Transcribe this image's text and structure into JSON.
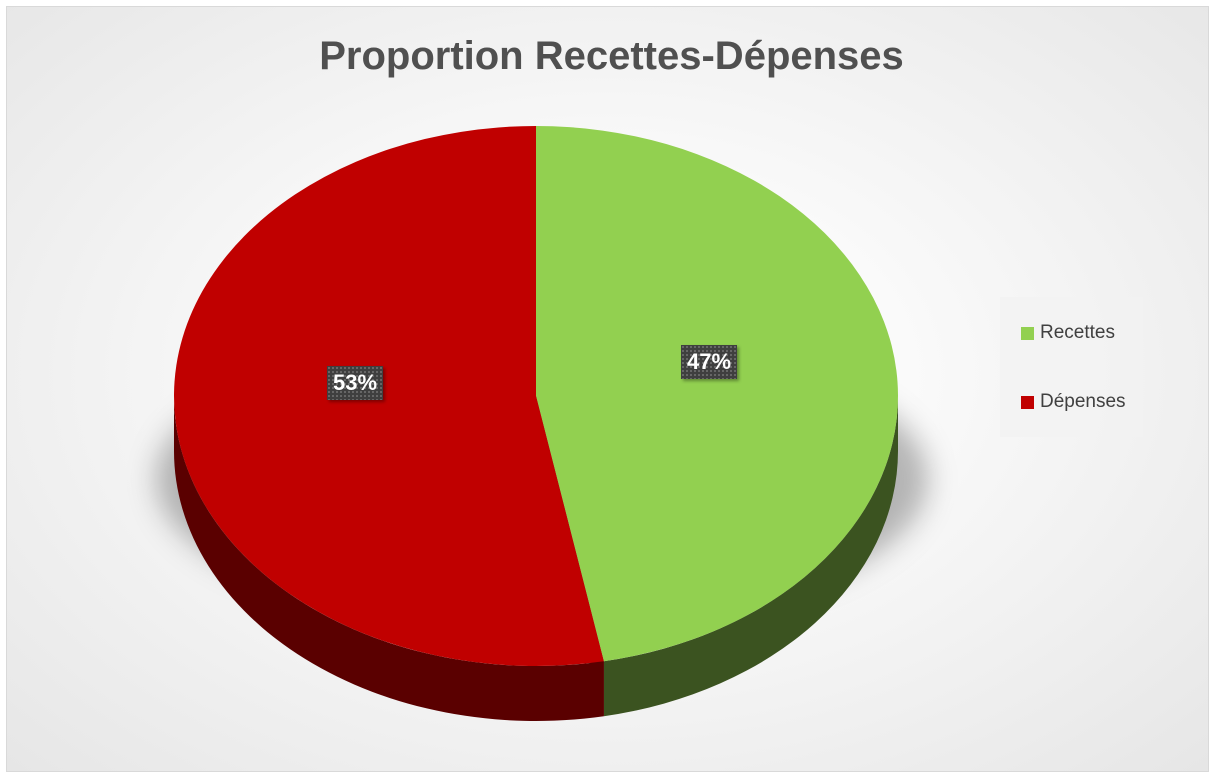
{
  "chart_data": {
    "type": "pie",
    "title": "Proportion Recettes-Dépenses",
    "slices": [
      {
        "name": "Recettes",
        "value": 47,
        "label": "47%",
        "color": "#92d050",
        "side_color": "#3b5320"
      },
      {
        "name": "Dépenses",
        "value": 53,
        "label": "53%",
        "color": "#c00000",
        "side_color": "#5a0000"
      }
    ],
    "legend": {
      "position": "right",
      "items": [
        "Recettes",
        "Dépenses"
      ]
    },
    "style": "3d"
  }
}
